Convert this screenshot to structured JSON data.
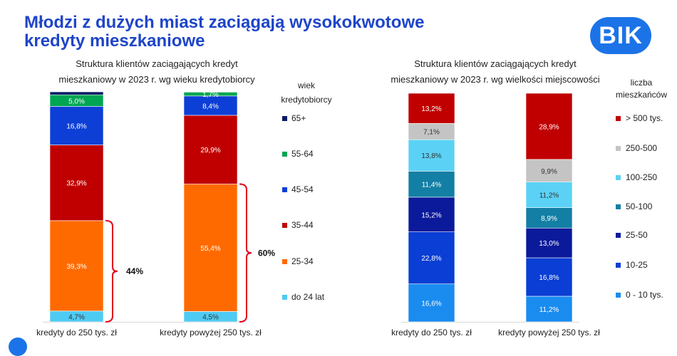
{
  "header": {
    "title_line1": "Młodzi z dużych miast zaciągają wysokokwotowe",
    "title_line2": "kredyty mieszkaniowe",
    "logo_text": "BIK",
    "brand_color": "#1e45c8"
  },
  "chart_data": [
    {
      "type": "stacked-bar",
      "title_line1": "Struktura klientów zaciągających kredyt",
      "title_line2": "mieszkaniowy w 2023 r. wg wieku kredytobiorcy",
      "legend_title_line1": "wiek",
      "legend_title_line2": "kredytobiorcy",
      "categories": [
        "kredyty do 250 tys. zł",
        "kredyty powyżej 250 tys. zł"
      ],
      "series": [
        {
          "name": "do 24 lat",
          "color": "#4ecbf3",
          "values": [
            4.7,
            4.5
          ]
        },
        {
          "name": "25-34",
          "color": "#ff6a00",
          "values": [
            39.3,
            55.4
          ]
        },
        {
          "name": "35-44",
          "color": "#c00000",
          "values": [
            32.9,
            29.9
          ]
        },
        {
          "name": "45-54",
          "color": "#0d3fd6",
          "values": [
            16.8,
            8.4
          ]
        },
        {
          "name": "55-64",
          "color": "#00a651",
          "values": [
            5.0,
            1.7
          ]
        },
        {
          "name": "65+",
          "color": "#0a1a66",
          "values": [
            1.3,
            0.1
          ]
        }
      ],
      "value_labels": [
        [
          "4,7%",
          "39,3%",
          "32,9%",
          "16,8%",
          "5,0%",
          ""
        ],
        [
          "4,5%",
          "55,4%",
          "29,9%",
          "8,4%",
          "1,7%",
          ""
        ]
      ],
      "brackets": [
        "44%",
        "60%"
      ],
      "ylim": [
        0,
        100
      ]
    },
    {
      "type": "stacked-bar",
      "title_line1": "Struktura klientów zaciągających kredyt",
      "title_line2": "mieszkaniowy w 2023 r. wg wielkości miejscowości",
      "legend_title_line1": "liczba",
      "legend_title_line2": "mieszkańców",
      "categories": [
        "kredyty do 250 tys. zł",
        "kredyty powyżej 250 tys. zł"
      ],
      "series": [
        {
          "name": "0 - 10 tys.",
          "color": "#1a8cf0",
          "values": [
            16.6,
            11.2
          ]
        },
        {
          "name": "10-25",
          "color": "#0a3ed4",
          "values": [
            22.8,
            16.8
          ]
        },
        {
          "name": "25-50",
          "color": "#0b1a9a",
          "values": [
            15.2,
            13.0
          ]
        },
        {
          "name": "50-100",
          "color": "#137fa4",
          "values": [
            11.4,
            8.9
          ]
        },
        {
          "name": "100-250",
          "color": "#5bd2f5",
          "values": [
            13.8,
            11.2
          ]
        },
        {
          "name": "250-500",
          "color": "#c4c4c4",
          "values": [
            7.1,
            9.9
          ]
        },
        {
          "name": "> 500 tys.",
          "color": "#c00000",
          "values": [
            13.2,
            28.9
          ]
        }
      ],
      "value_labels": [
        [
          "16,6%",
          "22,8%",
          "15,2%",
          "11,4%",
          "13,8%",
          "7,1%",
          "13,2%"
        ],
        [
          "11,2%",
          "16,8%",
          "13,0%",
          "8,9%",
          "11,2%",
          "9,9%",
          "28,9%"
        ]
      ],
      "ylim": [
        0,
        100
      ]
    }
  ]
}
